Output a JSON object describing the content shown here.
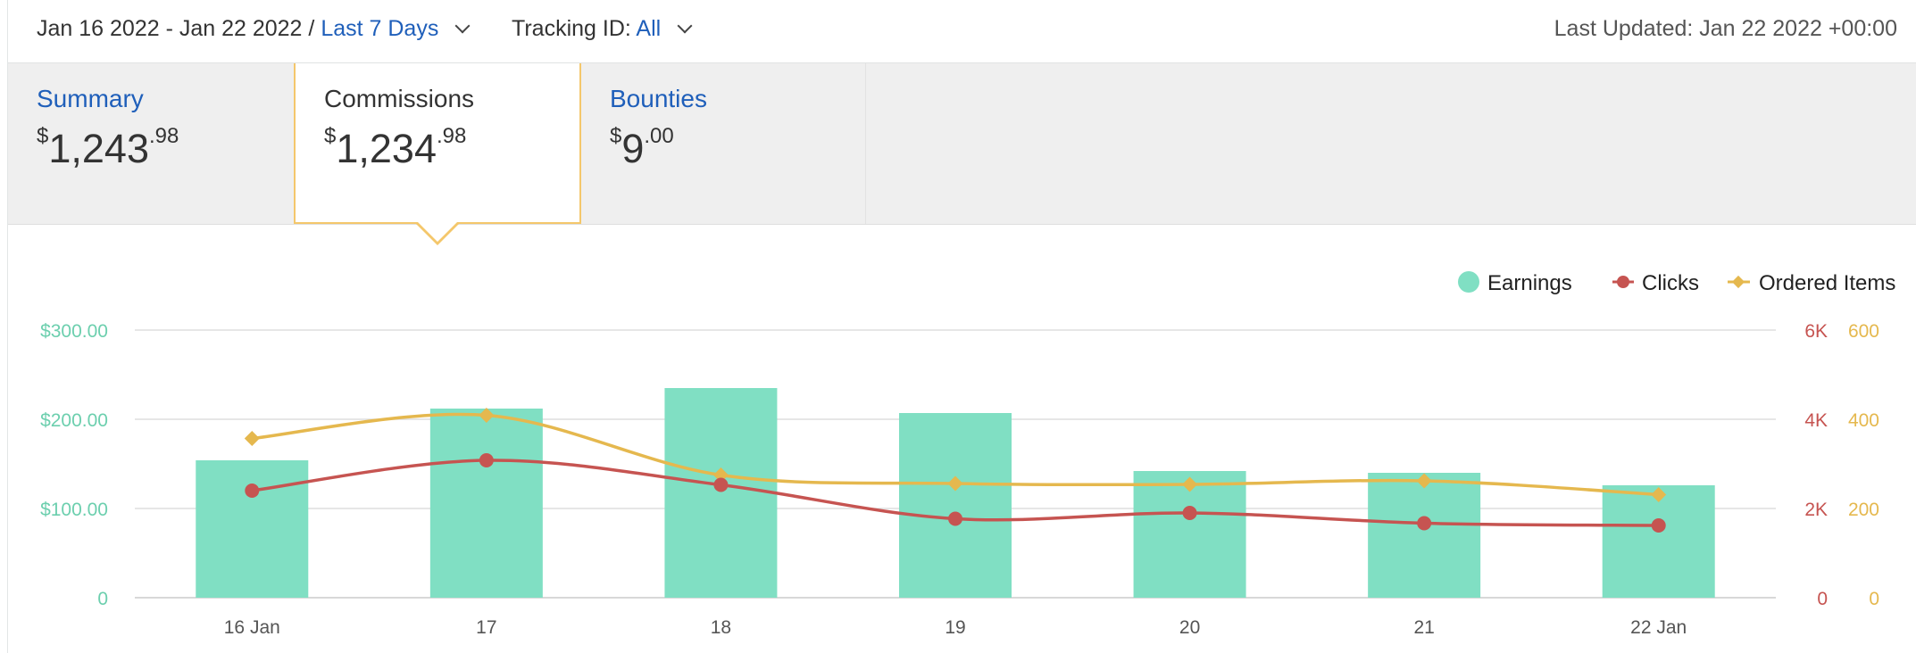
{
  "header": {
    "date_range": "Jan 16 2022 - Jan 22 2022 /",
    "range_link": "Last 7 Days",
    "tracking_label": "Tracking ID:",
    "tracking_value": "All",
    "last_updated": "Last Updated: Jan 22 2022 +00:00"
  },
  "tabs": [
    {
      "label": "Summary",
      "currency": "$",
      "whole": "1,243",
      "cents": ".98",
      "active": false
    },
    {
      "label": "Commissions",
      "currency": "$",
      "whole": "1,234",
      "cents": ".98",
      "active": true
    },
    {
      "label": "Bounties",
      "currency": "$",
      "whole": "9",
      "cents": ".00",
      "active": false
    }
  ],
  "colors": {
    "earnings": "#80dfc3",
    "clicks": "#c65451",
    "ordered_items": "#e5b84e",
    "left_axis": "#6ccfae",
    "gridline": "#dddddd"
  },
  "chart_data": {
    "type": "bar",
    "categories": [
      "16 Jan",
      "17",
      "18",
      "19",
      "20",
      "21",
      "22 Jan"
    ],
    "series": [
      {
        "name": "Earnings",
        "type": "bar",
        "axis": "left",
        "values": [
          154,
          212,
          235,
          207,
          142,
          140,
          126
        ]
      },
      {
        "name": "Clicks",
        "type": "line",
        "axis": "right1",
        "values": [
          2400,
          3080,
          2530,
          1770,
          1900,
          1670,
          1620
        ]
      },
      {
        "name": "Ordered Items",
        "type": "line",
        "axis": "right2",
        "values": [
          357,
          409,
          275,
          256,
          254,
          262,
          231
        ]
      }
    ],
    "left_axis": {
      "ylim": [
        0,
        300
      ],
      "ticks": [
        "0",
        "$100.00",
        "$200.00",
        "$300.00"
      ]
    },
    "right_axis_1": {
      "ylim": [
        0,
        6000
      ],
      "ticks": [
        "0",
        "2K",
        "4K",
        "6K"
      ]
    },
    "right_axis_2": {
      "ylim": [
        0,
        600
      ],
      "ticks": [
        "0",
        "200",
        "400",
        "600"
      ]
    },
    "legend": [
      {
        "name": "Earnings",
        "marker": "circle"
      },
      {
        "name": "Clicks",
        "marker": "line-circle"
      },
      {
        "name": "Ordered Items",
        "marker": "line-diamond"
      }
    ],
    "legend_position": "top-right",
    "grid": true
  }
}
